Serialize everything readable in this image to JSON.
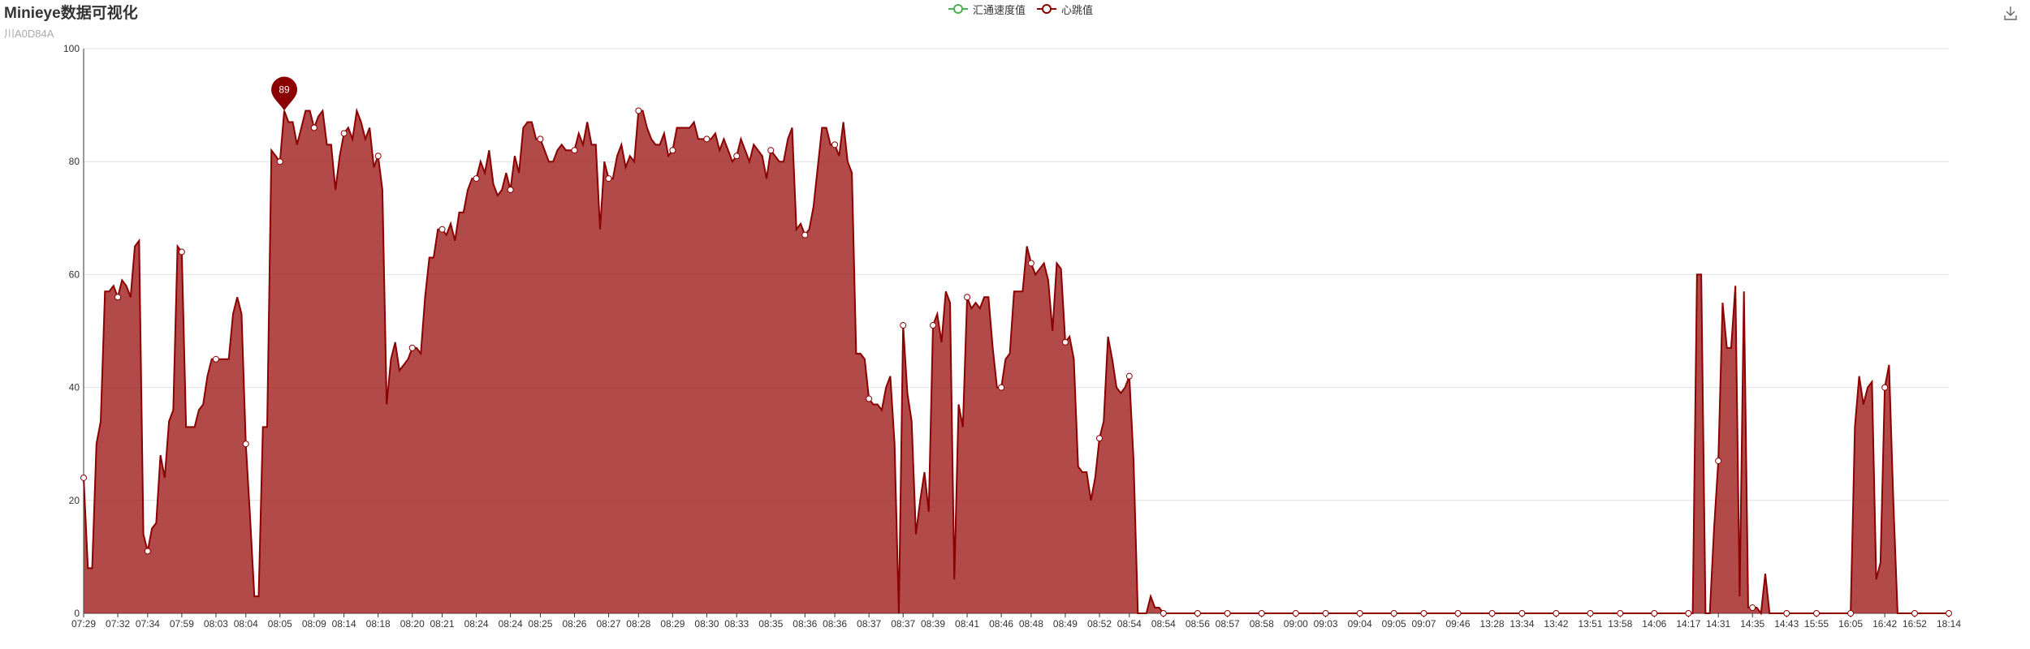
{
  "header": {
    "title": "Minieye数据可视化",
    "subtitle": "川A0D84A"
  },
  "legend": [
    {
      "label": "汇通速度值",
      "color": "#4caf50"
    },
    {
      "label": "心跳值",
      "color": "#8b0000"
    }
  ],
  "toolbox": {
    "icon": "download-icon"
  },
  "chart_data": {
    "type": "area",
    "title": "Minieye数据可视化",
    "subtitle": "川A0D84A",
    "ylim": [
      0,
      100
    ],
    "y_ticks": [
      0,
      20,
      40,
      60,
      80,
      100
    ],
    "grid": true,
    "legend_position": "top-center",
    "colors": {
      "series_line": "#8b0000",
      "series_fill": "#a52a2a",
      "grid": "#e0e0e0"
    },
    "x_tick_labels": [
      "07:29",
      "07:32",
      "07:34",
      "07:59",
      "08:03",
      "08:04",
      "08:05",
      "08:09",
      "08:14",
      "08:18",
      "08:20",
      "08:21",
      "08:24",
      "08:24",
      "08:25",
      "08:26",
      "08:27",
      "08:28",
      "08:29",
      "08:30",
      "08:33",
      "08:35",
      "08:36",
      "08:36",
      "08:37",
      "08:37",
      "08:39",
      "08:41",
      "08:46",
      "08:48",
      "08:49",
      "08:52",
      "08:54",
      "08:54",
      "08:56",
      "08:57",
      "08:58",
      "09:00",
      "09:03",
      "09:04",
      "09:05",
      "09:07",
      "09:46",
      "13:28",
      "13:34",
      "13:42",
      "13:51",
      "13:58",
      "14:06",
      "14:17",
      "14:31",
      "14:35",
      "14:43",
      "15:55",
      "16:05",
      "16:42",
      "16:52",
      "18:14"
    ],
    "series": [
      {
        "name": "心跳值",
        "values": [
          24,
          8,
          8,
          30,
          34,
          57,
          57,
          58,
          56,
          59,
          58,
          56,
          65,
          66,
          14,
          11,
          15,
          16,
          28,
          24,
          34,
          36,
          65,
          64,
          33,
          33,
          33,
          36,
          37,
          42,
          45,
          45,
          45,
          45,
          45,
          53,
          56,
          53,
          30,
          17,
          3,
          3,
          33,
          33,
          82,
          81,
          80,
          89,
          87,
          87,
          83,
          86,
          89,
          89,
          86,
          88,
          89,
          83,
          83,
          75,
          81,
          85,
          86,
          84,
          89,
          87,
          84,
          86,
          79,
          81,
          75,
          37,
          45,
          48,
          43,
          44,
          45,
          47,
          47,
          46,
          56,
          63,
          63,
          68,
          68,
          67,
          69,
          66,
          71,
          71,
          75,
          77,
          77,
          80,
          78,
          82,
          76,
          74,
          75,
          78,
          75,
          81,
          78,
          86,
          87,
          87,
          84,
          84,
          82,
          80,
          80,
          82,
          83,
          82,
          82,
          82,
          85,
          83,
          87,
          83,
          83,
          68,
          80,
          77,
          77,
          81,
          83,
          79,
          81,
          80,
          89,
          89,
          86,
          84,
          83,
          83,
          85,
          81,
          82,
          86,
          86,
          86,
          86,
          87,
          84,
          84,
          84,
          84,
          85,
          82,
          84,
          82,
          80,
          81,
          84,
          82,
          80,
          83,
          82,
          81,
          77,
          82,
          81,
          80,
          80,
          84,
          86,
          68,
          69,
          67,
          68,
          72,
          79,
          86,
          86,
          83,
          83,
          81,
          87,
          80,
          78,
          46,
          46,
          45,
          38,
          37,
          37,
          36,
          40,
          42,
          30,
          0,
          51,
          39,
          34,
          14,
          20,
          25,
          18,
          51,
          53,
          48,
          57,
          55,
          6,
          37,
          33,
          56,
          54,
          55,
          54,
          56,
          56,
          47,
          40,
          40,
          45,
          46,
          57,
          57,
          57,
          65,
          62,
          60,
          61,
          62,
          59,
          50,
          62,
          61,
          48,
          49,
          45,
          26,
          25,
          25,
          20,
          24,
          31,
          34,
          49,
          45,
          40,
          39,
          40,
          42,
          27,
          0,
          0,
          0,
          3,
          1,
          1,
          0,
          0,
          0,
          0,
          0,
          0,
          0,
          0,
          0,
          0,
          0,
          0,
          0,
          0,
          0,
          0,
          0,
          0,
          0,
          0,
          0,
          0,
          0,
          0,
          0,
          0,
          0,
          0,
          0,
          0,
          0,
          0,
          0,
          0,
          0,
          0,
          0,
          0,
          0,
          0,
          0,
          0,
          0,
          0,
          0,
          0,
          0,
          0,
          0,
          0,
          0,
          0,
          0,
          0,
          0,
          0,
          0,
          0,
          0,
          0,
          0,
          0,
          0,
          0,
          0,
          0,
          0,
          0,
          0,
          0,
          0,
          0,
          0,
          0,
          0,
          0,
          0,
          0,
          0,
          0,
          0,
          0,
          0,
          0,
          0,
          0,
          0,
          0,
          0,
          0,
          0,
          0,
          0,
          0,
          0,
          0,
          0,
          0,
          0,
          0,
          0,
          0,
          0,
          0,
          0,
          0,
          0,
          0,
          0,
          0,
          0,
          0,
          0,
          0,
          0,
          0,
          0,
          0,
          0,
          0,
          0,
          0,
          0,
          0,
          0,
          60,
          60,
          0,
          0,
          15,
          27,
          55,
          47,
          47,
          58,
          3,
          57,
          1,
          1,
          1,
          0,
          7,
          0,
          0,
          0,
          0,
          0,
          0,
          0,
          0,
          0,
          0,
          0,
          0,
          0,
          0,
          0,
          0,
          0,
          0,
          0,
          0,
          33,
          42,
          37,
          40,
          41,
          6,
          9,
          40,
          44,
          20,
          0,
          0,
          0,
          0,
          0,
          0,
          0,
          0,
          0,
          0,
          0,
          0,
          0
        ]
      }
    ],
    "max_marker": {
      "value": 89,
      "index": 47
    }
  }
}
